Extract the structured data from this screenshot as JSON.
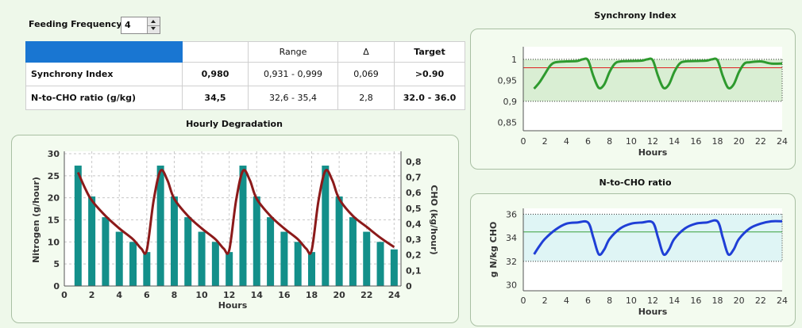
{
  "feeding_frequency": {
    "label": "Feeding Frequency",
    "value": "4"
  },
  "metrics_table": {
    "headers": [
      "",
      "",
      "Range",
      "Δ",
      "Target"
    ],
    "rows": [
      {
        "name": "Synchrony Index",
        "value": "0,980",
        "range": "0,931 - 0,999",
        "delta": "0,069",
        "target": ">0.90"
      },
      {
        "name": "N-to-CHO ratio (g/kg)",
        "value": "34,5",
        "range": "32,6 - 35,4",
        "delta": "2,8",
        "target": "32.0 - 36.0"
      }
    ],
    "header_color": "#1976d2"
  },
  "chart_data": [
    {
      "id": "hourly-degradation",
      "type": "bar",
      "title": "Hourly Degradation",
      "xlabel": "Hours",
      "ylabel": "Nitrogen (g/hour)",
      "y2label": "CHO (kg/hour)",
      "xlim": [
        0,
        24.5
      ],
      "ylim": [
        0,
        30
      ],
      "y2lim": [
        0,
        0.85
      ],
      "xticks": [
        0,
        2,
        4,
        6,
        8,
        10,
        12,
        14,
        16,
        18,
        20,
        22,
        24
      ],
      "yticks": [
        0,
        5,
        10,
        15,
        20,
        25,
        30
      ],
      "y2ticks": [
        "0",
        "0,1",
        "0,2",
        "0,3",
        "0,4",
        "0,5",
        "0,6",
        "0,7",
        "0,8"
      ],
      "grid": true,
      "series": [
        {
          "axis": "left",
          "type": "bar",
          "color": "#138f8a",
          "x": [
            1,
            2,
            3,
            4,
            5,
            6,
            7,
            8,
            9,
            10,
            11,
            12,
            13,
            14,
            15,
            16,
            17,
            18,
            19,
            20,
            21,
            22,
            23,
            24
          ],
          "values": [
            27.3,
            20.3,
            15.6,
            12.3,
            10,
            7.7,
            27.3,
            20.3,
            15.6,
            12.3,
            10,
            7.7,
            27.3,
            20.3,
            15.6,
            12.3,
            10,
            7.7,
            27.3,
            20.3,
            15.6,
            12.3,
            10,
            8.3
          ]
        },
        {
          "axis": "right",
          "type": "line",
          "color": "#8b1a1a",
          "x": [
            1,
            1.5,
            2,
            3,
            4,
            5,
            5.6,
            6,
            6.5,
            7,
            7.5,
            8,
            9,
            10,
            11,
            11.6,
            12,
            12.5,
            13,
            13.5,
            14,
            15,
            16,
            17,
            17.6,
            18,
            18.5,
            19,
            19.5,
            20,
            21,
            22,
            23,
            24
          ],
          "values": [
            0.73,
            0.63,
            0.55,
            0.45,
            0.37,
            0.3,
            0.24,
            0.23,
            0.55,
            0.74,
            0.68,
            0.56,
            0.45,
            0.37,
            0.3,
            0.24,
            0.23,
            0.55,
            0.74,
            0.68,
            0.56,
            0.45,
            0.37,
            0.3,
            0.24,
            0.23,
            0.55,
            0.74,
            0.68,
            0.56,
            0.45,
            0.38,
            0.31,
            0.25
          ]
        }
      ]
    },
    {
      "id": "synchrony-index",
      "type": "line",
      "title": "Synchrony Index",
      "xlabel": "Hours",
      "xlim": [
        0,
        24
      ],
      "ylim": [
        0.83,
        1.03
      ],
      "xticks": [
        0,
        2,
        4,
        6,
        8,
        10,
        12,
        14,
        16,
        18,
        20,
        22,
        24
      ],
      "yticks": [
        "1",
        "0,95",
        "0,9",
        "0,85"
      ],
      "target_band": [
        0.9,
        1.0
      ],
      "reference_line": 0.98,
      "series": [
        {
          "color": "#2e9a2e",
          "x": [
            1,
            1.5,
            2,
            2.5,
            3,
            4,
            5,
            5.5,
            6,
            6.5,
            7,
            7.5,
            8,
            8.5,
            9,
            10,
            11,
            11.5,
            12,
            12.5,
            13,
            13.5,
            14,
            14.5,
            15,
            16,
            17,
            17.5,
            18,
            18.5,
            19,
            19.5,
            20,
            20.5,
            21,
            22,
            23,
            24
          ],
          "values": [
            0.93,
            0.945,
            0.965,
            0.985,
            0.993,
            0.995,
            0.996,
            1.0,
            0.998,
            0.96,
            0.932,
            0.94,
            0.97,
            0.99,
            0.995,
            0.996,
            0.997,
            1.0,
            0.998,
            0.96,
            0.932,
            0.94,
            0.97,
            0.99,
            0.995,
            0.996,
            0.997,
            1.0,
            0.998,
            0.96,
            0.932,
            0.94,
            0.97,
            0.99,
            0.993,
            0.995,
            0.99,
            0.99
          ]
        }
      ]
    },
    {
      "id": "n-to-cho-ratio",
      "type": "line",
      "title": "N-to-CHO ratio",
      "ylabel": "g N/kg CHO",
      "xlabel": "Hours",
      "xlim": [
        0,
        24
      ],
      "ylim": [
        29.5,
        36.5
      ],
      "xticks": [
        0,
        2,
        4,
        6,
        8,
        10,
        12,
        14,
        16,
        18,
        20,
        22,
        24
      ],
      "yticks": [
        30,
        32,
        34,
        36
      ],
      "target_band": [
        32,
        36
      ],
      "reference_line": 34.5,
      "series": [
        {
          "color": "#1f3fd6",
          "x": [
            1,
            1.5,
            2,
            3,
            4,
            5,
            6,
            6.5,
            7,
            7.5,
            8,
            9,
            10,
            11,
            12,
            12.5,
            13,
            13.5,
            14,
            15,
            16,
            17,
            18,
            18.5,
            19,
            19.5,
            20,
            21,
            22,
            23,
            24
          ],
          "values": [
            32.6,
            33.3,
            33.9,
            34.7,
            35.2,
            35.3,
            35.3,
            34.0,
            32.6,
            33.0,
            33.9,
            34.8,
            35.2,
            35.3,
            35.3,
            34.0,
            32.6,
            33.0,
            33.9,
            34.8,
            35.2,
            35.3,
            35.4,
            34.0,
            32.6,
            33.0,
            33.9,
            34.8,
            35.2,
            35.4,
            35.4
          ]
        }
      ]
    }
  ]
}
